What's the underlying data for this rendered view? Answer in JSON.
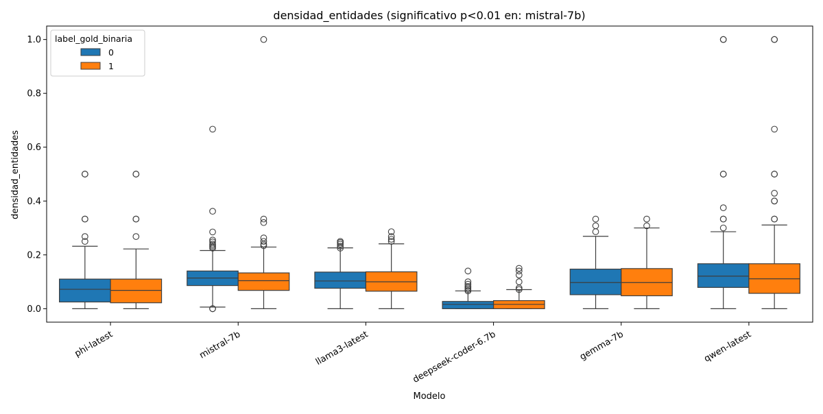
{
  "chart_data": {
    "type": "box",
    "title": "densidad_entidades (significativo p<0.01 en: mistral-7b)",
    "xlabel": "Modelo",
    "ylabel": "densidad_entidades",
    "ylim": [
      -0.05,
      1.05
    ],
    "yticks": [
      "0.0",
      "0.2",
      "0.4",
      "0.6",
      "0.8",
      "1.0"
    ],
    "categories": [
      "phi-latest",
      "mistral-7b",
      "llama3-latest",
      "deepseek-coder-6.7b",
      "gemma-7b",
      "qwen-latest"
    ],
    "legend": {
      "title": "label_gold_binaria",
      "position": "upper-left"
    },
    "series": [
      {
        "name": "0",
        "color": "#1f77b4",
        "boxes": [
          {
            "whislo": 0.0,
            "q1": 0.025,
            "med": 0.072,
            "q3": 0.11,
            "whishi": 0.232,
            "fliers": [
              0.25,
              0.268,
              0.333,
              0.333,
              0.5,
              0.5
            ]
          },
          {
            "whislo": 0.006,
            "q1": 0.086,
            "med": 0.114,
            "q3": 0.14,
            "whishi": 0.216,
            "fliers": [
              0.0,
              0.0,
              0.225,
              0.23,
              0.235,
              0.24,
              0.248,
              0.255,
              0.285,
              0.362,
              0.667
            ]
          },
          {
            "whislo": 0.0,
            "q1": 0.076,
            "med": 0.103,
            "q3": 0.136,
            "whishi": 0.226,
            "fliers": [
              0.225,
              0.232,
              0.24,
              0.246,
              0.25
            ]
          },
          {
            "whislo": 0.0,
            "q1": 0.0,
            "med": 0.016,
            "q3": 0.027,
            "whishi": 0.066,
            "fliers": [
              0.066,
              0.071,
              0.077,
              0.083,
              0.091,
              0.1,
              0.14
            ]
          },
          {
            "whislo": 0.0,
            "q1": 0.052,
            "med": 0.097,
            "q3": 0.147,
            "whishi": 0.269,
            "fliers": [
              0.286,
              0.308,
              0.333
            ]
          },
          {
            "whislo": 0.0,
            "q1": 0.079,
            "med": 0.121,
            "q3": 0.167,
            "whishi": 0.286,
            "fliers": [
              0.3,
              0.333,
              0.333,
              0.375,
              0.5,
              0.5,
              1.0,
              1.0
            ]
          }
        ]
      },
      {
        "name": "1",
        "color": "#ff7f0e",
        "boxes": [
          {
            "whislo": 0.0,
            "q1": 0.022,
            "med": 0.068,
            "q3": 0.11,
            "whishi": 0.222,
            "fliers": [
              0.268,
              0.333,
              0.333,
              0.5,
              0.5
            ]
          },
          {
            "whislo": 0.0,
            "q1": 0.068,
            "med": 0.104,
            "q3": 0.133,
            "whishi": 0.229,
            "fliers": [
              0.234,
              0.24,
              0.25,
              0.263,
              0.32,
              0.333,
              1.0
            ]
          },
          {
            "whislo": 0.0,
            "q1": 0.065,
            "med": 0.1,
            "q3": 0.137,
            "whishi": 0.241,
            "fliers": [
              0.25,
              0.258,
              0.268,
              0.286
            ]
          },
          {
            "whislo": 0.0,
            "q1": 0.0,
            "med": 0.016,
            "q3": 0.03,
            "whishi": 0.071,
            "fliers": [
              0.071,
              0.077,
              0.1,
              0.125,
              0.14,
              0.15
            ]
          },
          {
            "whislo": 0.0,
            "q1": 0.048,
            "med": 0.097,
            "q3": 0.149,
            "whishi": 0.3,
            "fliers": [
              0.308,
              0.333
            ]
          },
          {
            "whislo": 0.0,
            "q1": 0.057,
            "med": 0.111,
            "q3": 0.167,
            "whishi": 0.311,
            "fliers": [
              0.333,
              0.333,
              0.4,
              0.4,
              0.429,
              0.5,
              0.5,
              0.667,
              1.0,
              1.0
            ]
          }
        ]
      }
    ]
  }
}
